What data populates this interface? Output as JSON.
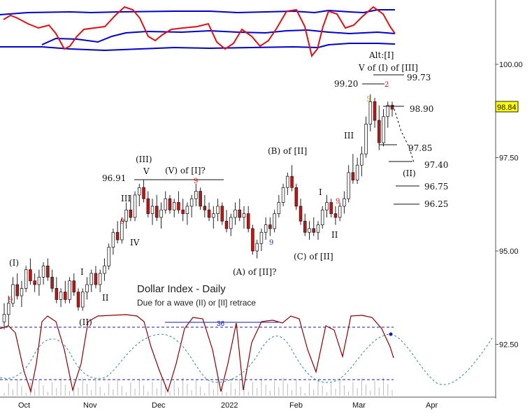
{
  "chart_data": {
    "type": "candlestick",
    "title": "Dollar Index - Daily",
    "subtitle": "Due for a wave (II) or [II] retrace",
    "price_tag": "98.84",
    "y_axis": {
      "ticks": [
        100.0,
        97.5,
        95.0,
        92.5
      ],
      "tick_labels": [
        "100.00",
        "97.50",
        "95.00",
        "92.50"
      ],
      "range": [
        90.6,
        102.2
      ]
    },
    "x_axis": {
      "labels": [
        "Oct",
        "Nov",
        "Dec",
        "2022",
        "Feb",
        "Mar",
        "Apr"
      ]
    },
    "price_levels": [
      {
        "label": "96.91",
        "value": 96.91
      },
      {
        "label": "99.20",
        "value": 99.2
      },
      {
        "label": "99.73",
        "value": 99.73
      },
      {
        "label": "98.90",
        "value": 98.9
      },
      {
        "label": "97.85",
        "value": 97.85
      },
      {
        "label": "97.40",
        "value": 97.4
      },
      {
        "label": "96.75",
        "value": 96.75
      },
      {
        "label": "96.25",
        "value": 96.25
      }
    ],
    "wave_labels": [
      "(I)",
      "I",
      "II",
      "(II)",
      "III",
      "IV",
      "(III)",
      "V",
      "(V) of [I]?",
      "(A) of [II]?",
      "(B) of [II]",
      "(C) of [II]",
      "I",
      "II",
      "III",
      "5",
      "2",
      "V of (I) of [III]",
      "Alt:[I]",
      "(II)",
      "9",
      "9",
      "9",
      "9",
      "9"
    ],
    "cycle": {
      "label": "36"
    },
    "series": [
      {
        "color": "#ff0000",
        "type": "line"
      },
      {
        "color": "#0000cc",
        "type": "band"
      },
      {
        "color": "#8b0000",
        "type": "oscillator"
      },
      {
        "color": "#2e8b8b",
        "type": "dashed-cycle"
      }
    ],
    "candles": [
      [
        93.1,
        93.6,
        92.9,
        93.3
      ],
      [
        93.3,
        93.8,
        93.0,
        93.6
      ],
      [
        93.6,
        94.3,
        93.5,
        94.1
      ],
      [
        94.1,
        94.4,
        93.7,
        93.8
      ],
      [
        93.8,
        94.2,
        93.5,
        94.0
      ],
      [
        94.0,
        94.6,
        93.9,
        94.5
      ],
      [
        94.5,
        94.8,
        94.1,
        94.2
      ],
      [
        94.2,
        94.4,
        93.9,
        94.1
      ],
      [
        94.1,
        94.5,
        93.8,
        94.3
      ],
      [
        94.3,
        94.7,
        94.1,
        94.6
      ],
      [
        94.6,
        94.8,
        94.2,
        94.3
      ],
      [
        94.3,
        94.5,
        93.9,
        94.0
      ],
      [
        94.0,
        94.3,
        93.6,
        93.7
      ],
      [
        93.7,
        94.0,
        93.5,
        93.9
      ],
      [
        93.9,
        94.2,
        93.6,
        93.7
      ],
      [
        93.7,
        94.3,
        93.6,
        94.2
      ],
      [
        94.2,
        94.4,
        93.8,
        93.9
      ],
      [
        93.9,
        94.0,
        93.4,
        93.5
      ],
      [
        93.5,
        94.0,
        93.4,
        93.9
      ],
      [
        93.9,
        94.3,
        93.7,
        94.1
      ],
      [
        94.1,
        94.5,
        93.9,
        94.4
      ],
      [
        94.4,
        94.6,
        94.0,
        94.1
      ],
      [
        94.1,
        94.5,
        93.9,
        94.4
      ],
      [
        94.4,
        94.8,
        94.2,
        94.6
      ],
      [
        94.6,
        95.2,
        94.5,
        95.1
      ],
      [
        95.1,
        95.6,
        94.9,
        95.5
      ],
      [
        95.5,
        95.8,
        95.2,
        95.3
      ],
      [
        95.3,
        95.9,
        95.2,
        95.8
      ],
      [
        95.8,
        96.3,
        95.6,
        96.1
      ],
      [
        96.1,
        96.5,
        95.8,
        95.9
      ],
      [
        95.9,
        96.6,
        95.8,
        96.5
      ],
      [
        96.5,
        96.8,
        96.2,
        96.7
      ],
      [
        96.7,
        96.9,
        96.3,
        96.4
      ],
      [
        96.4,
        96.6,
        95.9,
        96.0
      ],
      [
        96.0,
        96.4,
        95.7,
        96.2
      ],
      [
        96.2,
        96.5,
        95.8,
        95.9
      ],
      [
        95.9,
        96.3,
        95.6,
        96.1
      ],
      [
        96.1,
        96.6,
        96.0,
        96.4
      ],
      [
        96.4,
        96.5,
        96.0,
        96.1
      ],
      [
        96.1,
        96.4,
        95.9,
        96.3
      ],
      [
        96.3,
        96.6,
        96.0,
        96.1
      ],
      [
        96.1,
        96.4,
        95.8,
        96.0
      ],
      [
        96.0,
        96.3,
        95.7,
        96.2
      ],
      [
        96.2,
        96.5,
        95.9,
        96.4
      ],
      [
        96.4,
        96.8,
        96.2,
        96.6
      ],
      [
        96.6,
        96.7,
        96.1,
        96.2
      ],
      [
        96.2,
        96.5,
        95.9,
        96.1
      ],
      [
        96.1,
        96.3,
        95.8,
        95.9
      ],
      [
        95.9,
        96.2,
        95.6,
        96.0
      ],
      [
        96.0,
        96.4,
        95.8,
        96.2
      ],
      [
        96.2,
        96.3,
        95.7,
        95.8
      ],
      [
        95.8,
        96.1,
        95.5,
        95.6
      ],
      [
        95.6,
        96.0,
        95.4,
        95.9
      ],
      [
        95.9,
        96.3,
        95.7,
        96.1
      ],
      [
        96.1,
        96.4,
        95.8,
        95.9
      ],
      [
        95.9,
        96.2,
        95.6,
        96.0
      ],
      [
        96.0,
        96.2,
        95.5,
        95.6
      ],
      [
        95.6,
        95.7,
        94.9,
        95.0
      ],
      [
        95.0,
        95.3,
        94.8,
        95.2
      ],
      [
        95.2,
        95.6,
        95.0,
        95.5
      ],
      [
        95.5,
        95.9,
        95.3,
        95.7
      ],
      [
        95.7,
        95.9,
        95.4,
        95.6
      ],
      [
        95.6,
        96.1,
        95.5,
        96.0
      ],
      [
        96.0,
        96.5,
        95.9,
        96.3
      ],
      [
        96.3,
        96.8,
        96.2,
        96.7
      ],
      [
        96.7,
        97.1,
        96.5,
        97.0
      ],
      [
        97.0,
        97.3,
        96.6,
        96.7
      ],
      [
        96.7,
        96.8,
        96.1,
        96.2
      ],
      [
        96.2,
        96.4,
        95.7,
        95.8
      ],
      [
        95.8,
        96.0,
        95.4,
        95.5
      ],
      [
        95.5,
        95.8,
        95.3,
        95.6
      ],
      [
        95.6,
        95.9,
        95.4,
        95.5
      ],
      [
        95.5,
        95.8,
        95.3,
        95.7
      ],
      [
        95.7,
        96.2,
        95.6,
        96.1
      ],
      [
        96.1,
        96.5,
        95.9,
        96.3
      ],
      [
        96.3,
        96.4,
        95.9,
        96.0
      ],
      [
        96.0,
        96.2,
        95.7,
        95.9
      ],
      [
        95.9,
        96.3,
        95.8,
        96.2
      ],
      [
        96.2,
        96.6,
        96.0,
        96.4
      ],
      [
        96.4,
        97.3,
        96.3,
        97.1
      ],
      [
        97.1,
        97.6,
        96.8,
        96.9
      ],
      [
        96.9,
        97.5,
        96.8,
        97.3
      ],
      [
        97.3,
        97.8,
        97.0,
        97.6
      ],
      [
        97.6,
        98.6,
        97.5,
        98.4
      ],
      [
        98.4,
        99.2,
        98.2,
        99.0
      ],
      [
        99.0,
        99.1,
        98.3,
        98.5
      ],
      [
        98.5,
        98.9,
        97.7,
        97.9
      ],
      [
        97.9,
        98.8,
        97.8,
        98.6
      ],
      [
        98.6,
        99.0,
        98.3,
        98.9
      ],
      [
        98.9,
        99.0,
        98.6,
        98.8
      ]
    ]
  }
}
